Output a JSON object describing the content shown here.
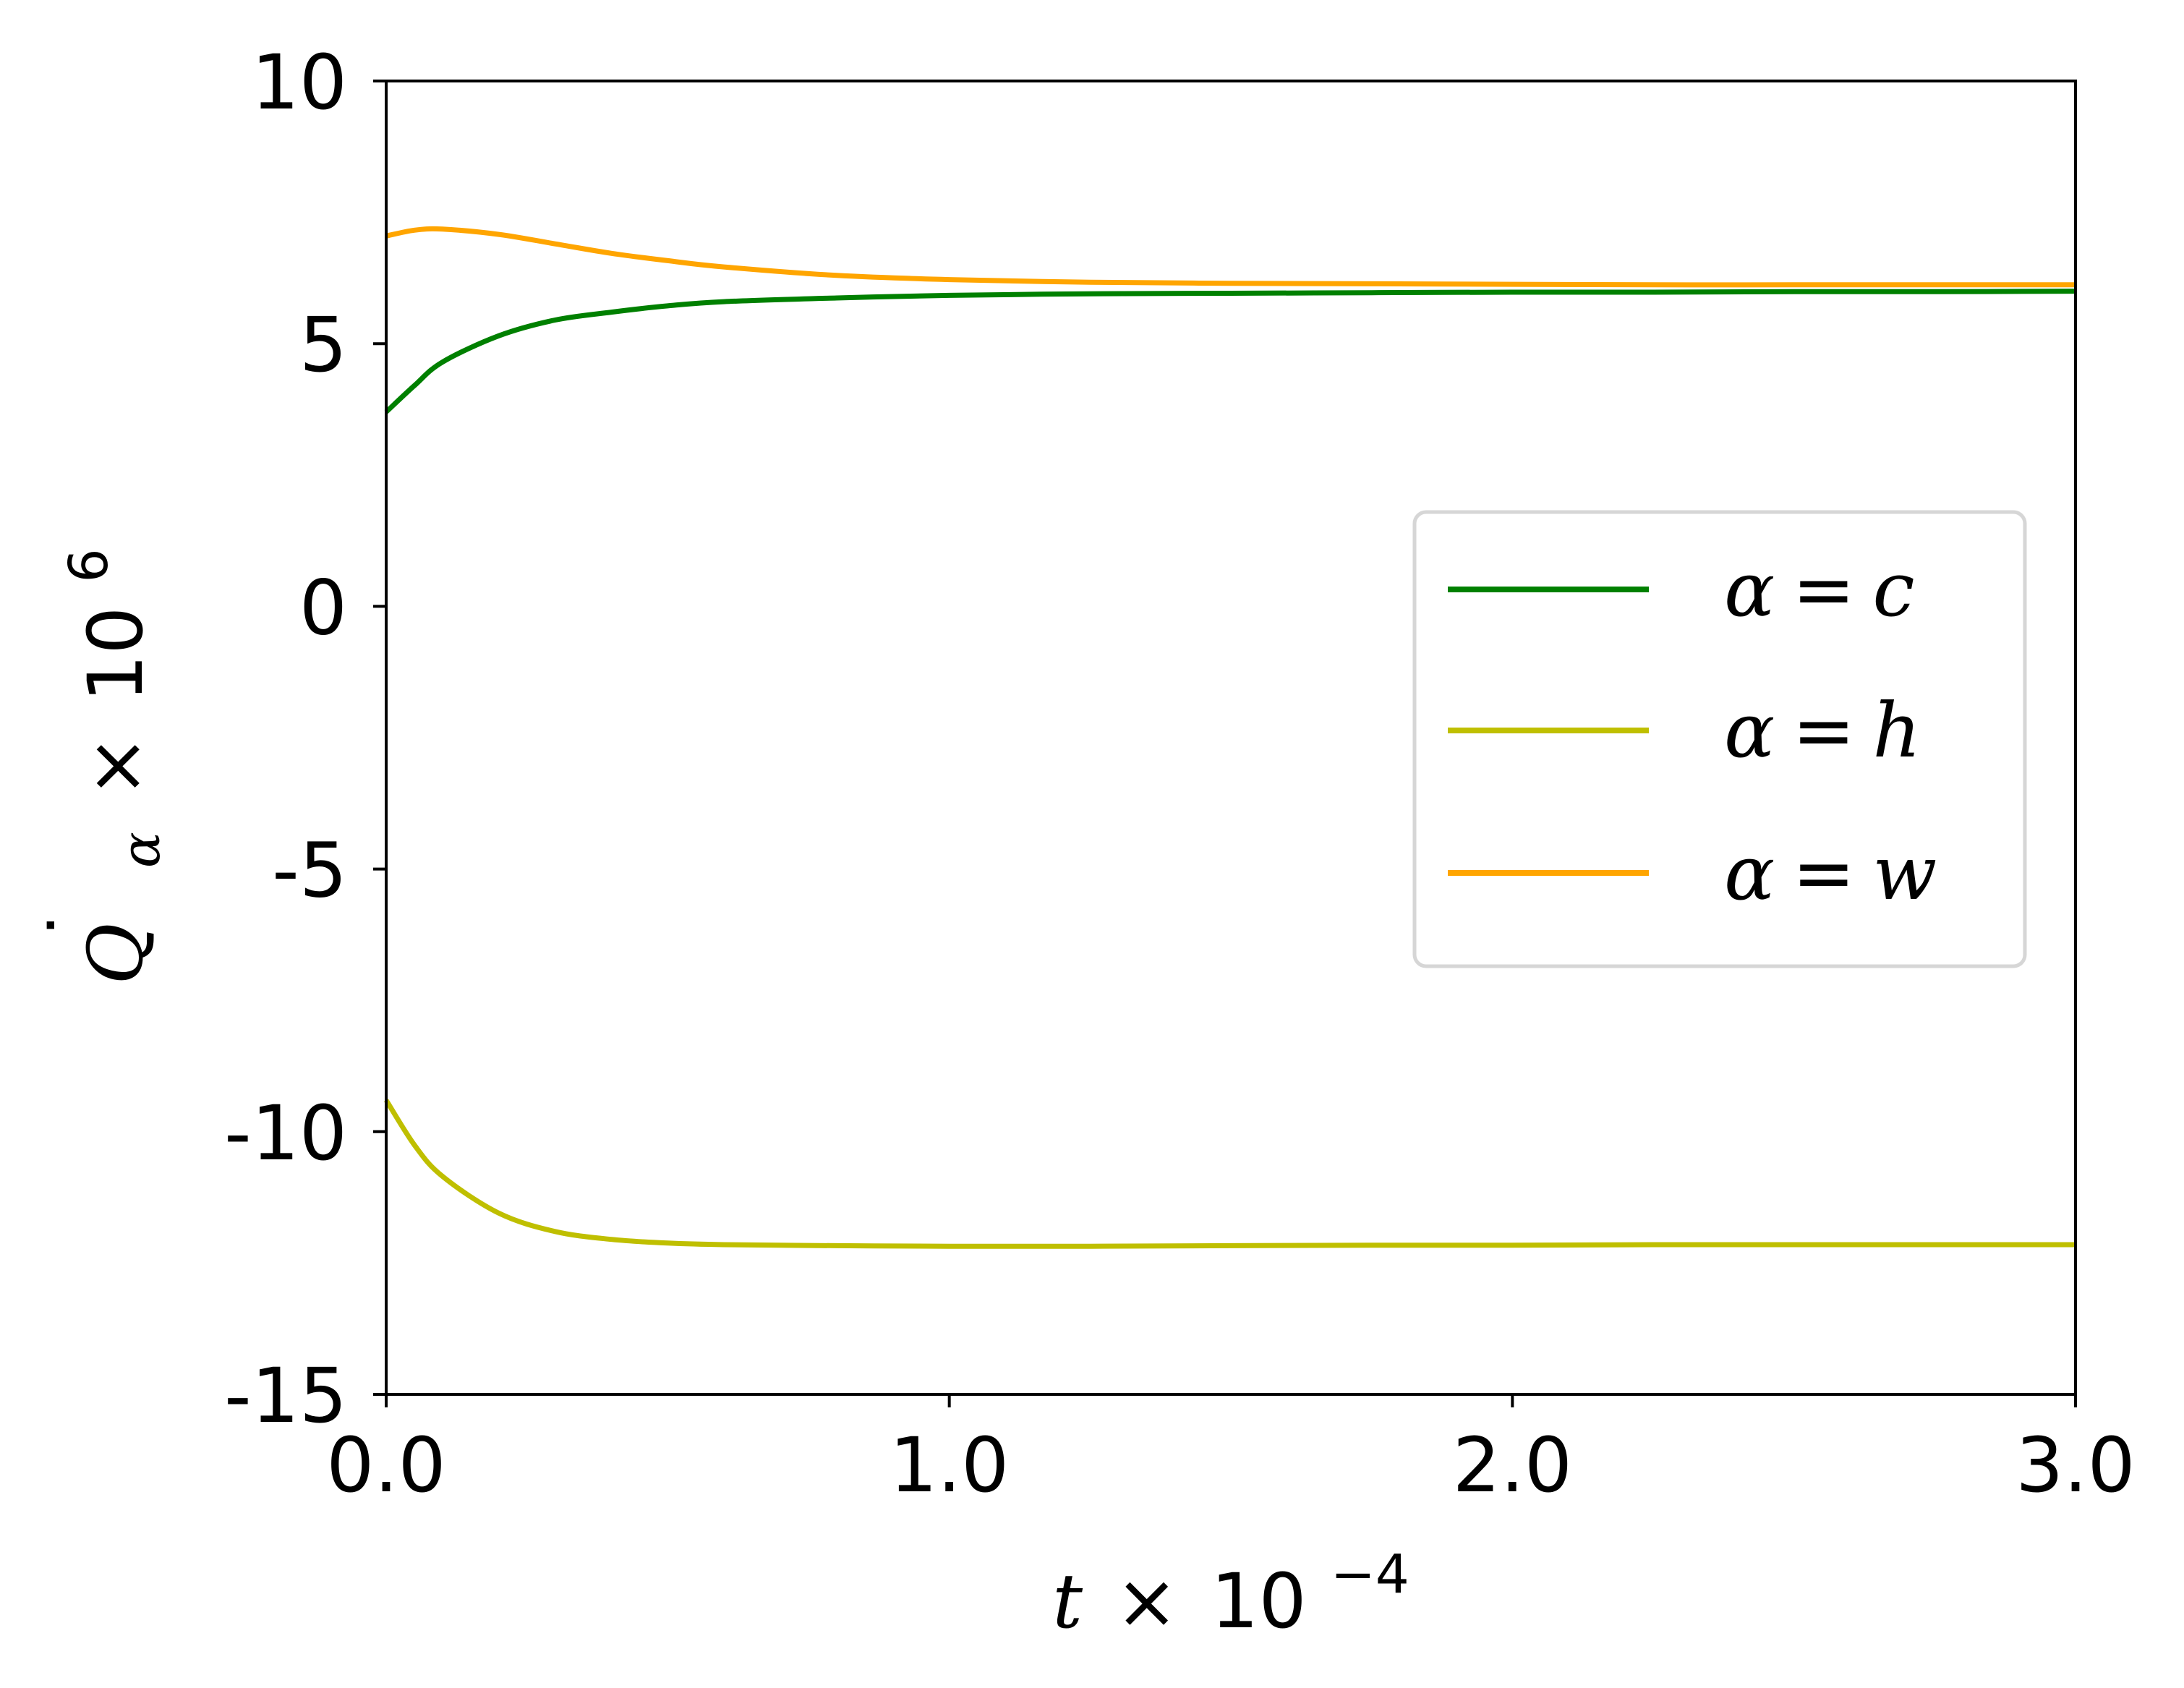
{
  "chart_data": {
    "type": "line",
    "title": "",
    "xlabel": {
      "var": "t",
      "times": "×",
      "base": "10",
      "exp": "−4"
    },
    "ylabel": {
      "var": "Q",
      "dot": "˙",
      "sub": "α",
      "times": "×",
      "base": "10",
      "exp": "6"
    },
    "xlim": [
      0.0,
      3.0
    ],
    "ylim": [
      -15,
      10
    ],
    "xticks": [
      0.0,
      1.0,
      2.0,
      3.0
    ],
    "xtick_labels": [
      "0.0",
      "1.0",
      "2.0",
      "3.0"
    ],
    "yticks": [
      -15,
      -10,
      -5,
      0,
      5,
      10
    ],
    "ytick_labels": [
      "-15",
      "-10",
      "-5",
      "0",
      "5",
      "10"
    ],
    "grid": false,
    "legend_position": "center-right",
    "x": [
      0.0,
      0.05,
      0.1,
      0.2,
      0.3,
      0.4,
      0.5,
      0.6,
      0.8,
      1.0,
      1.25,
      1.5,
      1.75,
      2.0,
      2.25,
      2.5,
      2.75,
      3.0
    ],
    "series": [
      {
        "name": "α = c",
        "legend": {
          "var": "α",
          "eq": "=",
          "val": "c"
        },
        "color": "#008000",
        "values": [
          3.7,
          4.2,
          4.65,
          5.15,
          5.45,
          5.6,
          5.72,
          5.8,
          5.87,
          5.92,
          5.95,
          5.96,
          5.97,
          5.98,
          5.98,
          5.99,
          5.99,
          6.0
        ]
      },
      {
        "name": "α = h",
        "legend": {
          "var": "α",
          "eq": "=",
          "val": "h"
        },
        "color": "#bfbf00",
        "values": [
          -9.4,
          -10.25,
          -10.85,
          -11.55,
          -11.9,
          -12.05,
          -12.12,
          -12.15,
          -12.17,
          -12.18,
          -12.18,
          -12.17,
          -12.16,
          -12.16,
          -12.15,
          -12.15,
          -12.15,
          -12.15
        ]
      },
      {
        "name": "α = w",
        "legend": {
          "var": "α",
          "eq": "=",
          "val": "w"
        },
        "color": "#ffa500",
        "values": [
          7.05,
          7.16,
          7.18,
          7.08,
          6.9,
          6.72,
          6.58,
          6.46,
          6.3,
          6.22,
          6.17,
          6.15,
          6.14,
          6.13,
          6.12,
          6.12,
          6.12,
          6.12
        ]
      }
    ]
  }
}
